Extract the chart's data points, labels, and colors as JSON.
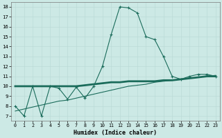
{
  "xlabel": "Humidex (Indice chaleur)",
  "bg_color": "#cce9e5",
  "line_color": "#1a6b5a",
  "grid_color": "#b8d8d4",
  "xlim": [
    -0.5,
    23.5
  ],
  "ylim": [
    6.5,
    18.5
  ],
  "xticks": [
    0,
    1,
    2,
    3,
    4,
    5,
    6,
    7,
    8,
    9,
    10,
    11,
    12,
    13,
    14,
    15,
    16,
    17,
    18,
    19,
    20,
    21,
    22,
    23
  ],
  "yticks": [
    7,
    8,
    9,
    10,
    11,
    12,
    13,
    14,
    15,
    16,
    17,
    18
  ],
  "curve1_x": [
    0,
    1,
    2,
    3,
    4,
    5,
    6,
    7,
    8,
    9,
    10,
    11,
    12,
    13,
    14,
    15,
    16,
    17,
    18,
    19,
    20,
    21,
    22,
    23
  ],
  "curve1_y": [
    8.0,
    7.0,
    10.0,
    7.0,
    10.0,
    9.8,
    8.7,
    9.9,
    8.8,
    10.0,
    12.0,
    15.2,
    18.0,
    17.9,
    17.4,
    15.0,
    14.7,
    13.0,
    11.0,
    10.7,
    11.0,
    11.2,
    11.2,
    11.0
  ],
  "curve2_x": [
    0,
    1,
    2,
    3,
    4,
    5,
    6,
    7,
    8,
    9,
    10,
    11,
    12,
    13,
    14,
    15,
    16,
    17,
    18,
    19,
    20,
    21,
    22,
    23
  ],
  "curve2_y": [
    10.0,
    10.0,
    10.0,
    10.0,
    10.0,
    10.0,
    10.0,
    10.0,
    10.1,
    10.2,
    10.3,
    10.4,
    10.4,
    10.5,
    10.5,
    10.5,
    10.5,
    10.6,
    10.6,
    10.7,
    10.8,
    10.9,
    11.0,
    11.0
  ],
  "curve3_x": [
    0,
    1,
    2,
    3,
    4,
    5,
    6,
    7,
    8,
    9,
    10,
    11,
    12,
    13,
    14,
    15,
    16,
    17,
    18,
    19,
    20,
    21,
    22,
    23
  ],
  "curve3_y": [
    7.5,
    7.7,
    7.9,
    8.1,
    8.3,
    8.5,
    8.6,
    8.8,
    9.0,
    9.2,
    9.4,
    9.6,
    9.8,
    10.0,
    10.1,
    10.2,
    10.4,
    10.5,
    10.6,
    10.7,
    10.8,
    10.9,
    11.0,
    11.1
  ]
}
